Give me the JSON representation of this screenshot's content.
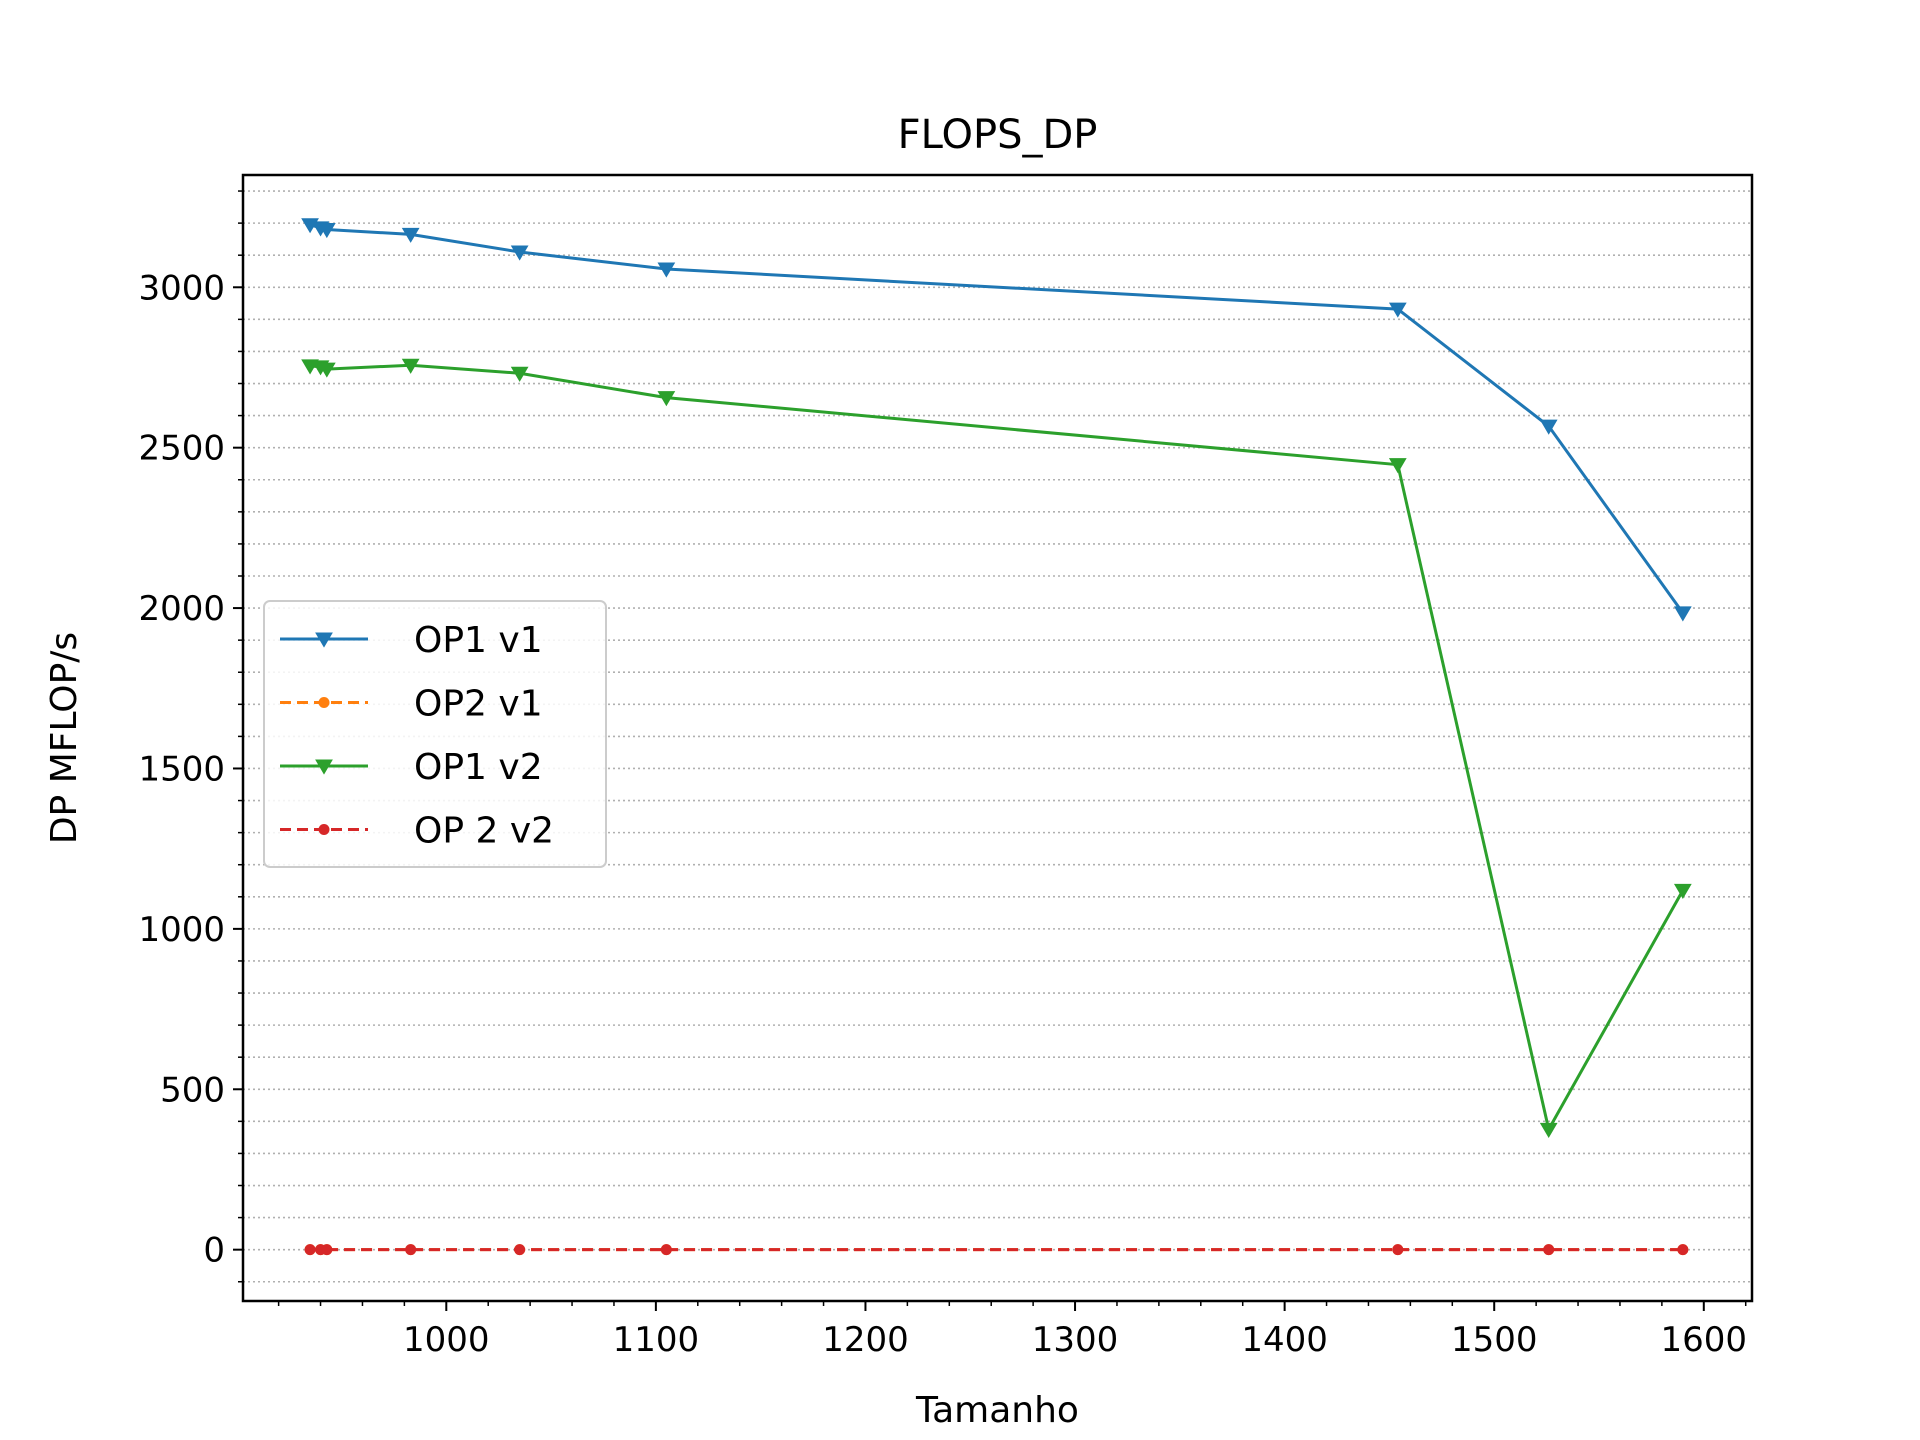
{
  "chart_data": {
    "type": "line",
    "title": "FLOPS_DP",
    "xlabel": "Tamanho",
    "ylabel": "DP MFLOP/s",
    "xlim": [
      903,
      1623
    ],
    "ylim": [
      -160,
      3350
    ],
    "xticks": [
      1000,
      1100,
      1200,
      1300,
      1400,
      1500,
      1600
    ],
    "yticks": [
      0,
      500,
      1000,
      1500,
      2000,
      2500,
      3000
    ],
    "grid": "horizontal minor dotted",
    "legend_position": "center-left",
    "x": [
      935,
      940,
      943,
      983,
      1035,
      1105,
      1454,
      1526,
      1590
    ],
    "series": [
      {
        "name": "OP1 v1",
        "color": "#1f77b4",
        "marker": "triangle-down",
        "linestyle": "solid",
        "values": [
          3195,
          3185,
          3180,
          3165,
          3110,
          3057,
          2932,
          2567,
          1985
        ]
      },
      {
        "name": "OP2 v1",
        "color": "#ff7f0e",
        "marker": "circle",
        "linestyle": "dashed",
        "values": [
          0,
          0,
          0,
          0,
          0,
          0,
          0,
          0,
          0
        ]
      },
      {
        "name": "OP1 v2",
        "color": "#2ca02c",
        "marker": "triangle-down",
        "linestyle": "solid",
        "values": [
          2755,
          2752,
          2745,
          2757,
          2732,
          2656,
          2447,
          375,
          1120
        ]
      },
      {
        "name": "OP 2 v2",
        "color": "#d62728",
        "marker": "circle",
        "linestyle": "dashed",
        "values": [
          0,
          0,
          0,
          0,
          0,
          0,
          0,
          0,
          0
        ]
      }
    ]
  }
}
